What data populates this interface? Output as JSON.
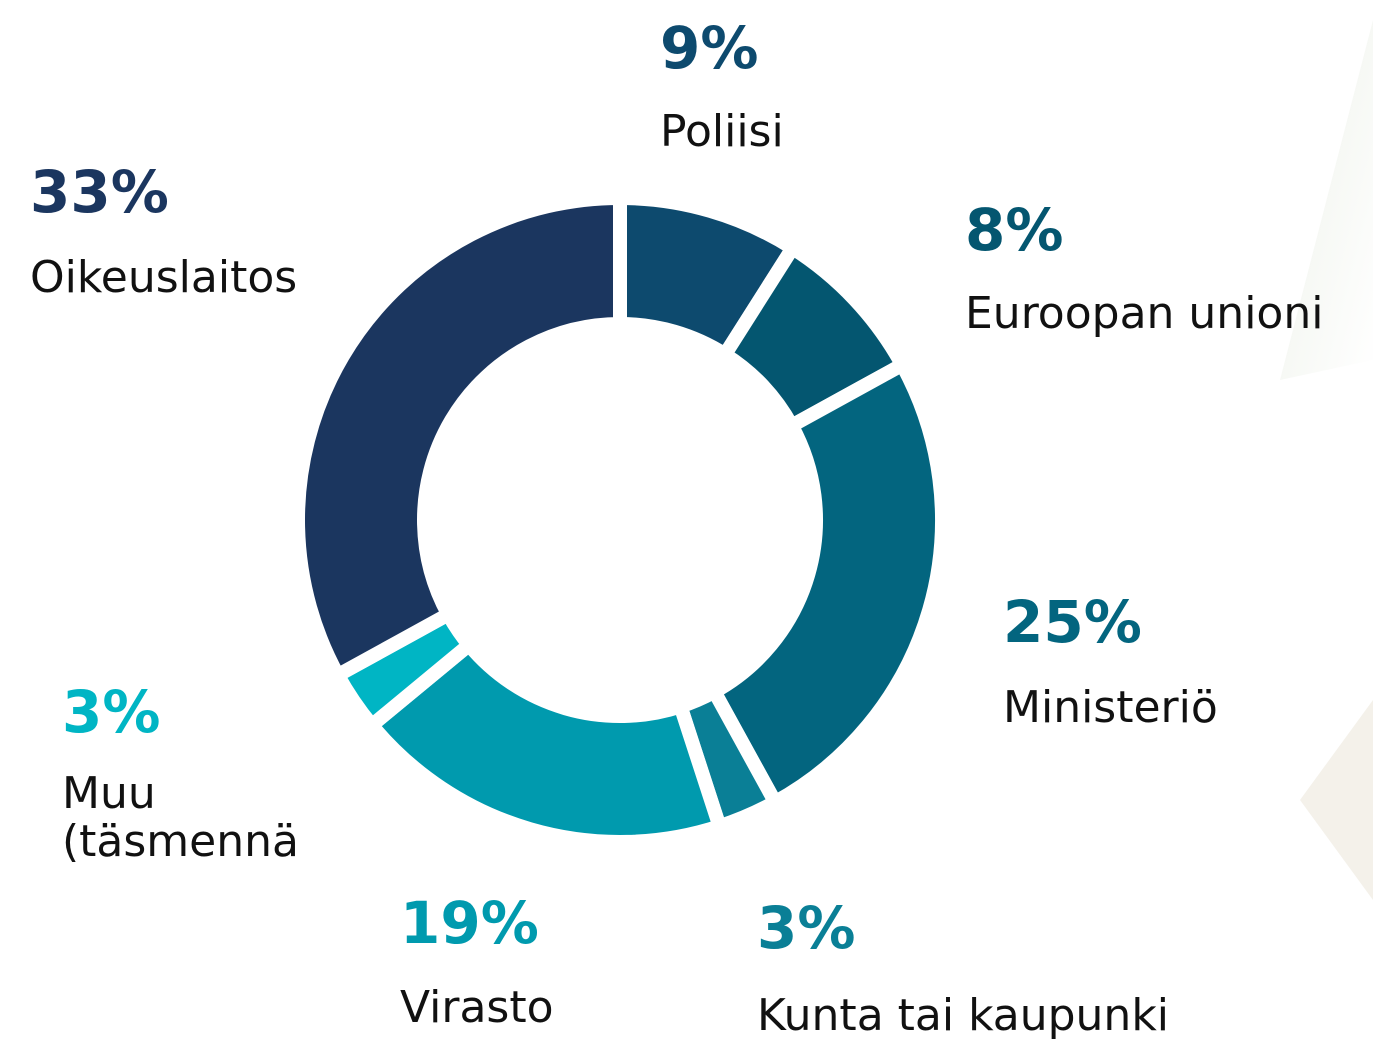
{
  "chart_data": {
    "type": "donut",
    "categories": [
      "Poliisi",
      "Euroopan unioni",
      "Ministeriö",
      "Kunta tai kaupunki",
      "Virasto",
      "Muu (täsmennä)",
      "Oikeuslaitos"
    ],
    "values": [
      9,
      8,
      25,
      3,
      19,
      3,
      33
    ],
    "value_labels": [
      "9%",
      "8%",
      "25%",
      "3%",
      "19%",
      "3%",
      "33%"
    ],
    "colors": [
      "#0d4a6e",
      "#045670",
      "#03657f",
      "#0a7f96",
      "#009aae",
      "#00b5c4",
      "#1b365f"
    ]
  }
}
